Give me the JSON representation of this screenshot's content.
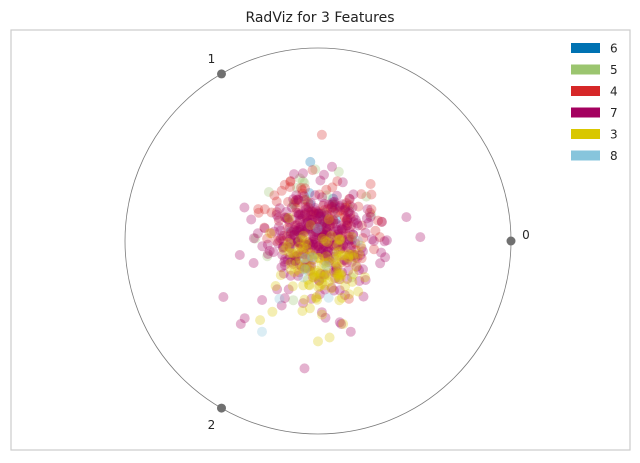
{
  "chart_data": {
    "type": "scatter",
    "subtype": "radviz",
    "title": "RadViz for 3 Features",
    "anchors": [
      {
        "label": "0",
        "angle_deg": 0
      },
      {
        "label": "1",
        "angle_deg": 120
      },
      {
        "label": "2",
        "angle_deg": 240
      }
    ],
    "circle_radius": 1,
    "xlim": [
      -1,
      1
    ],
    "ylim": [
      -1,
      1
    ],
    "grid": false,
    "legend_position": "top-right",
    "point_opacity": 0.3,
    "series": [
      {
        "name": "6",
        "color": "#0072b2",
        "cx": -0.02,
        "cy": 0.12,
        "sx": 0.09,
        "sy": 0.1,
        "n": 14,
        "seed": 11,
        "fixed": [
          [
            -0.04,
            0.41
          ]
        ]
      },
      {
        "name": "5",
        "color": "#9bc56f",
        "cx": 0.0,
        "cy": 0.05,
        "sx": 0.12,
        "sy": 0.14,
        "n": 34,
        "seed": 23,
        "fixed": [
          [
            0.25,
            0.23
          ],
          [
            -0.07,
            0.3
          ]
        ]
      },
      {
        "name": "4",
        "color": "#d62728",
        "cx": 0.0,
        "cy": 0.1,
        "sx": 0.13,
        "sy": 0.11,
        "n": 150,
        "seed": 37,
        "fixed": [
          [
            0.02,
            0.55
          ],
          [
            0.1,
            0.31
          ],
          [
            -0.24,
            0.04
          ],
          [
            0.32,
            0.02
          ],
          [
            0.33,
            0.1
          ],
          [
            0.16,
            -0.3
          ]
        ]
      },
      {
        "name": "7",
        "color": "#a4005f",
        "cx": 0.02,
        "cy": 0.0,
        "sx": 0.16,
        "sy": 0.14,
        "n": 300,
        "seed": 53,
        "fixed": [
          [
            -0.49,
            -0.29
          ],
          [
            -0.4,
            -0.43
          ],
          [
            -0.07,
            -0.66
          ],
          [
            0.53,
            0.02
          ],
          [
            0.12,
            -0.43
          ],
          [
            0.17,
            -0.47
          ],
          [
            -0.38,
            -0.4
          ]
        ]
      },
      {
        "name": "3",
        "color": "#d9c700",
        "cx": 0.02,
        "cy": -0.14,
        "sx": 0.12,
        "sy": 0.11,
        "n": 120,
        "seed": 71,
        "fixed": [
          [
            0.06,
            -0.5
          ],
          [
            -0.3,
            -0.41
          ],
          [
            0.0,
            -0.52
          ],
          [
            0.13,
            -0.43
          ]
        ]
      },
      {
        "name": "8",
        "color": "#87c5dc",
        "cx": -0.1,
        "cy": -0.12,
        "sx": 0.1,
        "sy": 0.09,
        "n": 8,
        "seed": 97,
        "fixed": [
          [
            -0.29,
            -0.47
          ],
          [
            -0.2,
            -0.3
          ]
        ]
      }
    ]
  }
}
